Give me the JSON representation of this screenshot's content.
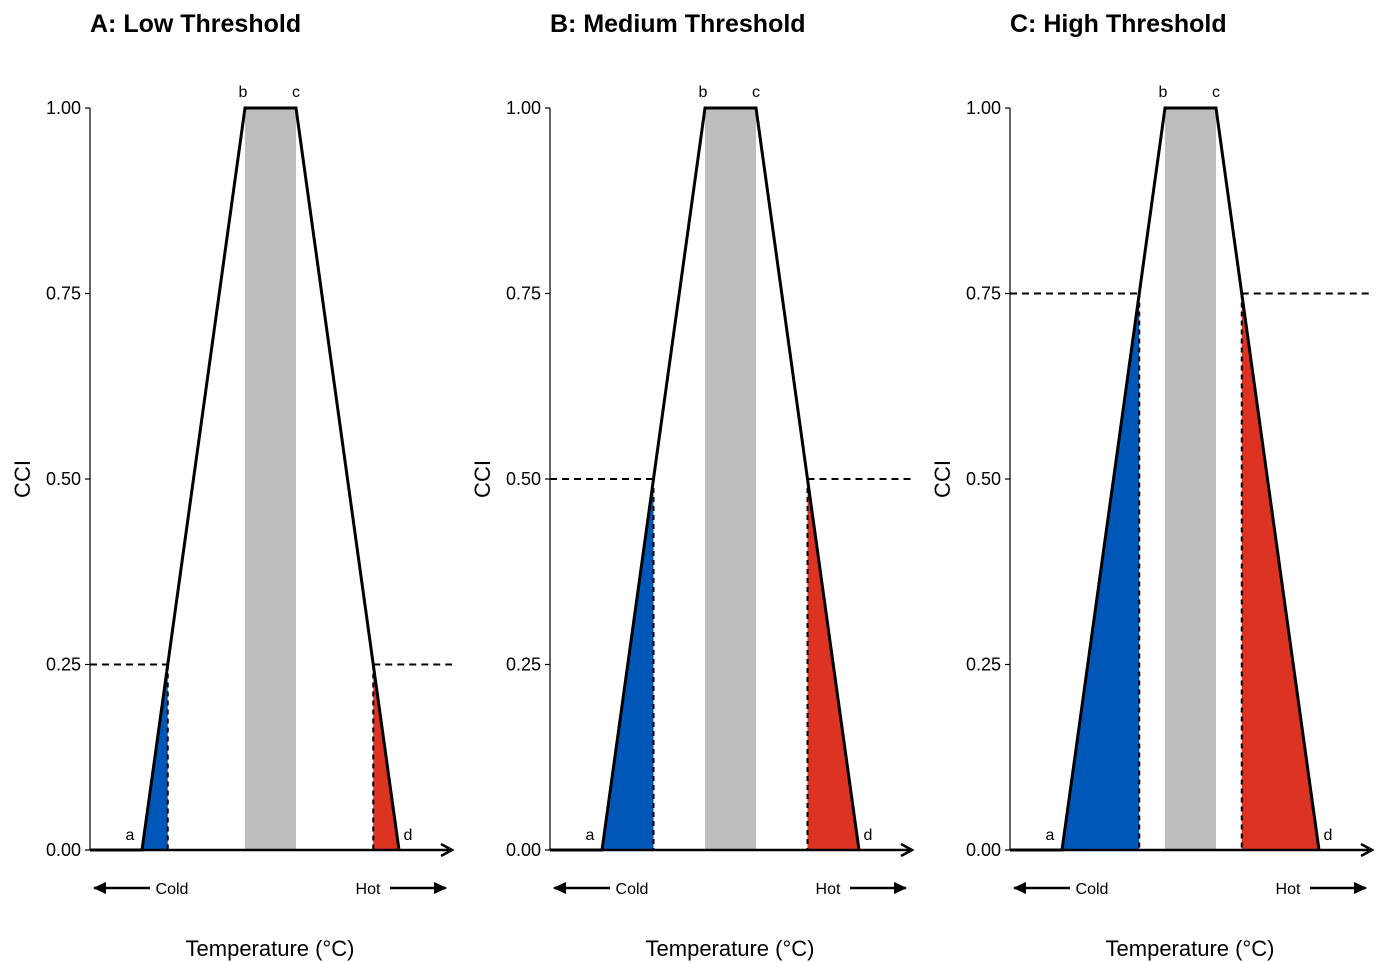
{
  "chart_data": [
    {
      "type": "area",
      "title": "A: Low Threshold",
      "ylabel": "CCI",
      "xlabel": "Temperature (°C)",
      "ylim": [
        0,
        1
      ],
      "yticks": [
        "0.00",
        "0.25",
        "0.50",
        "0.75",
        "1.00"
      ],
      "threshold": 0.25,
      "points": {
        "a": "a",
        "b": "b",
        "c": "c",
        "d": "d"
      },
      "direction_labels": {
        "cold": "Cold",
        "hot": "Hot"
      },
      "colors": {
        "cold": "#0057B7",
        "hot": "#DD3322",
        "optimal": "#BEBEBE",
        "line": "#000000"
      }
    },
    {
      "type": "area",
      "title": "B: Medium Threshold",
      "ylabel": "CCI",
      "xlabel": "Temperature (°C)",
      "ylim": [
        0,
        1
      ],
      "yticks": [
        "0.00",
        "0.25",
        "0.50",
        "0.75",
        "1.00"
      ],
      "threshold": 0.5,
      "points": {
        "a": "a",
        "b": "b",
        "c": "c",
        "d": "d"
      },
      "direction_labels": {
        "cold": "Cold",
        "hot": "Hot"
      },
      "colors": {
        "cold": "#0057B7",
        "hot": "#DD3322",
        "optimal": "#BEBEBE",
        "line": "#000000"
      }
    },
    {
      "type": "area",
      "title": "C: High Threshold",
      "ylabel": "CCI",
      "xlabel": "Temperature (°C)",
      "ylim": [
        0,
        1
      ],
      "yticks": [
        "0.00",
        "0.25",
        "0.50",
        "0.75",
        "1.00"
      ],
      "threshold": 0.75,
      "points": {
        "a": "a",
        "b": "b",
        "c": "c",
        "d": "d"
      },
      "direction_labels": {
        "cold": "Cold",
        "hot": "Hot"
      },
      "colors": {
        "cold": "#0057B7",
        "hot": "#DD3322",
        "optimal": "#BEBEBE",
        "line": "#000000"
      }
    }
  ]
}
